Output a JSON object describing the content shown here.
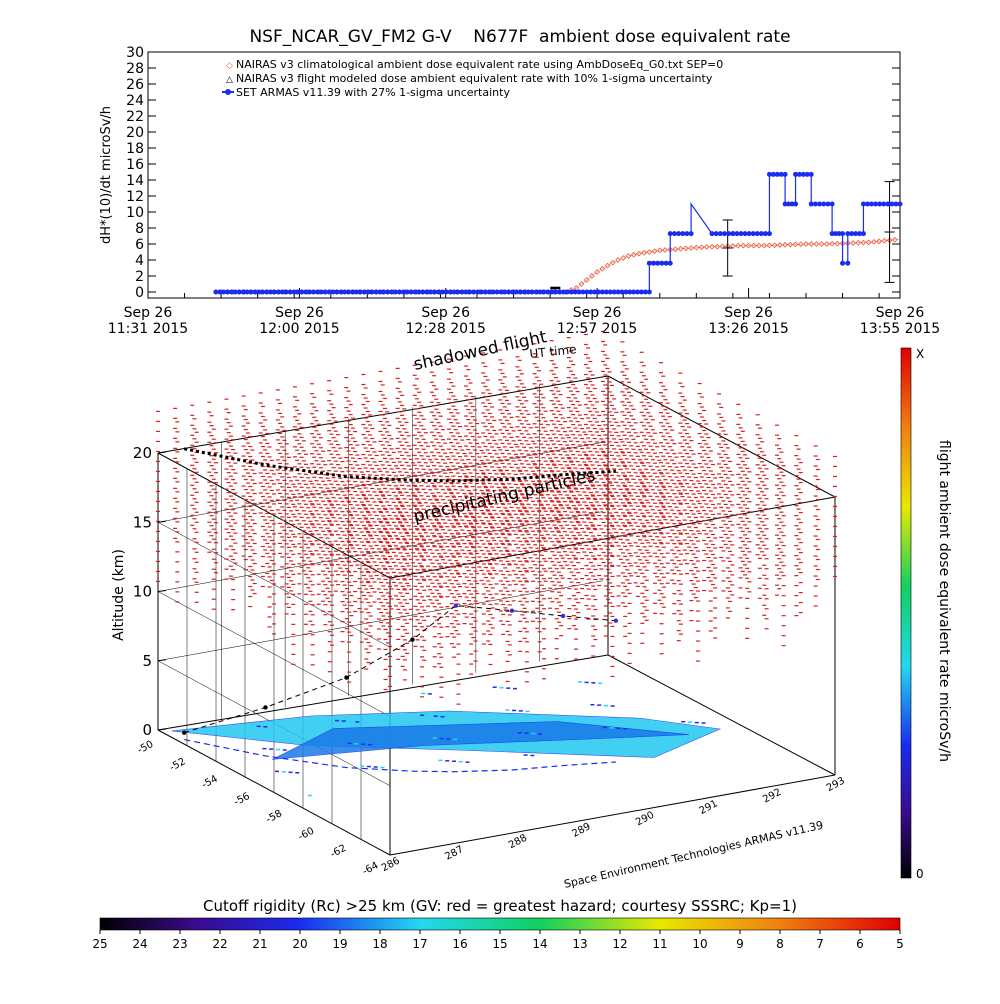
{
  "title": "NSF_NCAR_GV_FM2 G-V    N677F  ambient dose equivalent rate",
  "colors": {
    "nairas_clim": "#e8583a",
    "armas": "#1a2cf0",
    "precip": "#d42020",
    "flight": "#000000",
    "axis": "#000000"
  },
  "chart_data": [
    {
      "type": "line",
      "ylabel": "dH*(10)/dt microSv/h",
      "xlabel": "UT time",
      "ylim": [
        0,
        30
      ],
      "yticks": [
        0,
        2,
        4,
        6,
        8,
        10,
        12,
        14,
        16,
        18,
        20,
        22,
        24,
        26,
        28,
        30
      ],
      "xticks": [
        {
          "min": 0,
          "day": "Sep 26",
          "time": "11:31 2015"
        },
        {
          "min": 29,
          "day": "Sep 26",
          "time": "12:00 2015"
        },
        {
          "min": 57,
          "day": "Sep 26",
          "time": "12:28 2015"
        },
        {
          "min": 86,
          "day": "Sep 26",
          "time": "12:57 2015"
        },
        {
          "min": 115,
          "day": "Sep 26",
          "time": "13:26 2015"
        },
        {
          "min": 144,
          "day": "Sep 26",
          "time": "13:55 2015"
        }
      ],
      "xlim": [
        0,
        144
      ],
      "legend": {
        "position": "top-left",
        "entries": [
          "NAIRAS v3 climatological ambient dose equivalent rate using AmbDoseEq_G0.txt SEP=0",
          "NAIRAS v3 flight modeled dose ambient equivalent rate with 10% 1-sigma uncertainty",
          "SET ARMAS v11.39 with 27% 1-sigma uncertainty"
        ]
      },
      "series": [
        {
          "name": "NAIRAS v3 climatological ambient dose equivalent rate using AmbDoseEq_G0.txt SEP=0",
          "style": "diamond",
          "x": [
            13,
            80,
            82,
            84,
            86,
            88,
            90,
            92,
            94,
            96,
            98,
            100,
            102,
            104,
            106,
            110,
            114,
            118,
            122,
            126,
            130,
            134,
            138,
            141,
            144
          ],
          "y": [
            0,
            0,
            0.5,
            1.5,
            2.5,
            3.3,
            4.0,
            4.5,
            4.8,
            5.0,
            5.2,
            5.3,
            5.4,
            5.5,
            5.6,
            5.7,
            5.8,
            5.8,
            5.9,
            6.0,
            6.0,
            6.1,
            6.2,
            6.4,
            6.6
          ]
        },
        {
          "name": "NAIRAS v3 flight modeled dose ambient equivalent rate with 10% 1-sigma uncertainty",
          "style": "errorbar",
          "x": [
            78,
            111,
            142
          ],
          "y": [
            0.5,
            5.5,
            7.5
          ],
          "err": [
            0.1,
            3.5,
            6.3
          ]
        },
        {
          "name": "SET ARMAS v11.39 with 27% 1-sigma uncertainty",
          "style": "dots",
          "x": [
            13,
            96,
            96,
            100,
            100,
            104,
            104,
            108,
            112,
            119,
            119,
            122,
            122,
            124,
            124,
            127,
            127,
            131,
            131,
            133,
            133,
            134,
            134,
            137,
            137,
            144
          ],
          "y": [
            0,
            0,
            3.6,
            3.6,
            7.3,
            7.3,
            11,
            7.3,
            7.3,
            7.3,
            14.7,
            14.7,
            11,
            11,
            14.7,
            14.7,
            11,
            11,
            7.3,
            7.3,
            3.6,
            3.6,
            7.3,
            7.3,
            11,
            11
          ]
        }
      ]
    },
    {
      "type": "scatter",
      "subtype": "3d-trajectory",
      "zlabel": "Altitude (km)",
      "zlim": [
        0,
        20
      ],
      "zticks": [
        0,
        5,
        10,
        15,
        20
      ],
      "lat_ticks": [
        -50,
        -52,
        -54,
        -56,
        -58,
        -60,
        -62,
        -64
      ],
      "lon_ticks": [
        286,
        287,
        288,
        289,
        290,
        291,
        292,
        293
      ],
      "annotations": [
        "shadowed flight",
        "precipitating particles",
        "UT time"
      ],
      "credit": "Space Environment Technologies ARMAS v11.39",
      "colorbar_right": {
        "label": "flight ambient dose equivalent rate microSv/h",
        "top": "X",
        "bottom": "0"
      },
      "flight_track": {
        "lon": [
          286.1,
          286.7,
          287.4,
          288.1,
          288.6,
          289.3,
          290.0,
          290.7
        ],
        "lat": [
          -51.2,
          -53.8,
          -56.0,
          -57.3,
          -58.0,
          -58.7,
          -59.1,
          -59.6
        ],
        "alt_km": [
          0.5,
          3.5,
          6.5,
          9.5,
          12.0,
          11.5,
          10.8,
          10.2
        ]
      }
    }
  ],
  "colorbar_bottom": {
    "title": "Cutoff rigidity (Rc) >25 km (GV: red = greatest hazard; courtesy SSSRC; Kp=1)",
    "ticks": [
      "25",
      "24",
      "23",
      "22",
      "21",
      "20",
      "19",
      "18",
      "17",
      "16",
      "15",
      "14",
      "13",
      "12",
      "11",
      "10",
      "9",
      "8",
      "7",
      "6",
      "5"
    ]
  }
}
